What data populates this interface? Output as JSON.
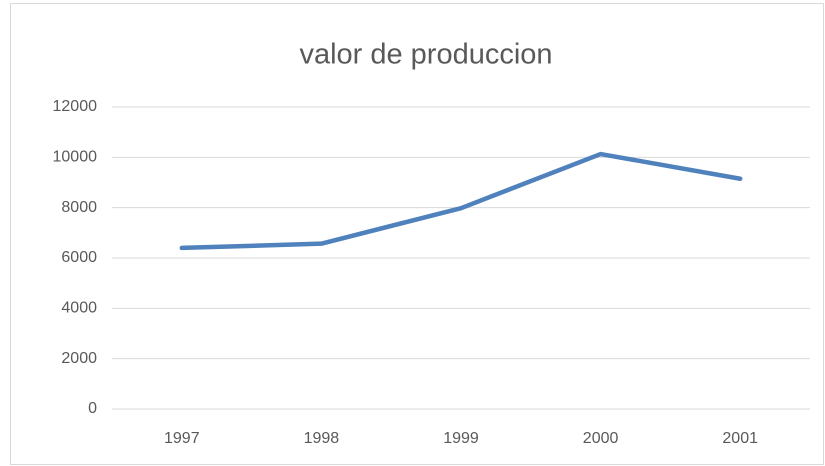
{
  "chart_data": {
    "type": "line",
    "title": "valor de produccion",
    "categories": [
      "1997",
      "1998",
      "1999",
      "2000",
      "2001"
    ],
    "values": [
      6400,
      6570,
      7980,
      10130,
      9150
    ],
    "color": "#4f81bd",
    "ylim": [
      0,
      12000
    ],
    "yticks": [
      0,
      2000,
      4000,
      6000,
      8000,
      10000,
      12000
    ],
    "grid": true
  }
}
